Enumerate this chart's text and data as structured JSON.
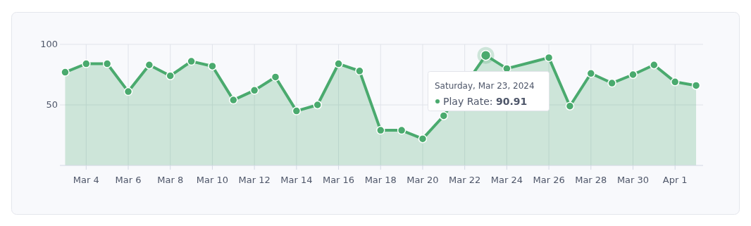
{
  "chart_data": {
    "type": "area",
    "x": [
      "2024-03-03",
      "2024-03-04",
      "2024-03-05",
      "2024-03-06",
      "2024-03-07",
      "2024-03-08",
      "2024-03-09",
      "2024-03-10",
      "2024-03-11",
      "2024-03-12",
      "2024-03-13",
      "2024-03-14",
      "2024-03-15",
      "2024-03-16",
      "2024-03-17",
      "2024-03-18",
      "2024-03-19",
      "2024-03-20",
      "2024-03-21",
      "2024-03-22",
      "2024-03-23",
      "2024-03-24",
      "2024-03-25",
      "2024-03-26",
      "2024-03-27",
      "2024-03-28",
      "2024-03-29",
      "2024-03-30",
      "2024-03-31",
      "2024-04-01",
      "2024-04-02"
    ],
    "series": [
      {
        "color": "#4aaa6e",
        "values": [
          77,
          84,
          84,
          61,
          83,
          74,
          86,
          82,
          54,
          62,
          73,
          45,
          50,
          84,
          78,
          29,
          29,
          22,
          41,
          null,
          90.91,
          80,
          null,
          89,
          49,
          76,
          68,
          75,
          83,
          69,
          66
        ]
      }
    ],
    "xlim": [
      "2024-03-02T18:00",
      "2024-04-02T08:00"
    ],
    "xticks": [
      {
        "value": "2024-03-04",
        "label": "Mar 4"
      },
      {
        "value": "2024-03-06",
        "label": "Mar 6"
      },
      {
        "value": "2024-03-08",
        "label": "Mar 8"
      },
      {
        "value": "2024-03-10",
        "label": "Mar 10"
      },
      {
        "value": "2024-03-12",
        "label": "Mar 12"
      },
      {
        "value": "2024-03-14",
        "label": "Mar 14"
      },
      {
        "value": "2024-03-16",
        "label": "Mar 16"
      },
      {
        "value": "2024-03-18",
        "label": "Mar 18"
      },
      {
        "value": "2024-03-20",
        "label": "Mar 20"
      },
      {
        "value": "2024-03-22",
        "label": "Mar 22"
      },
      {
        "value": "2024-03-24",
        "label": "Mar 24"
      },
      {
        "value": "2024-03-26",
        "label": "Mar 26"
      },
      {
        "value": "2024-03-28",
        "label": "Mar 28"
      },
      {
        "value": "2024-03-30",
        "label": "Mar 30"
      },
      {
        "value": "2024-04-01",
        "label": "Apr 1"
      }
    ],
    "ylim": [
      0,
      100
    ],
    "yticks": [
      50,
      100
    ],
    "grid": true,
    "marker": "circle",
    "annotations": [
      "Saturday, Mar 23, 2024",
      "Play Rate: 90.91"
    ]
  }
}
